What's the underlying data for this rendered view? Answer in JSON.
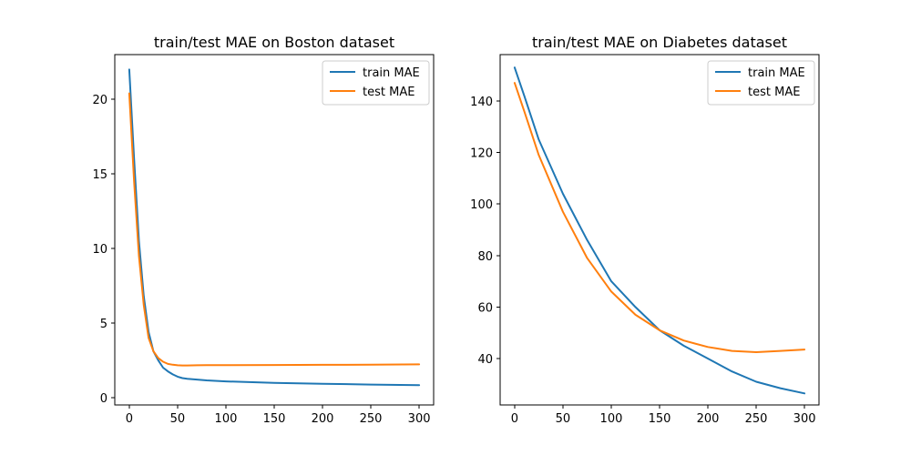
{
  "chart_data": [
    {
      "type": "line",
      "title": "train/test MAE on Boston dataset",
      "xlabel": "",
      "ylabel": "",
      "xlim": [
        -15,
        315
      ],
      "ylim": [
        -0.5,
        23.0
      ],
      "xticks": [
        0,
        50,
        100,
        150,
        200,
        250,
        300
      ],
      "yticks": [
        0,
        5,
        10,
        15,
        20
      ],
      "legend_position": "top-right",
      "grid": false,
      "series": [
        {
          "name": "train MAE",
          "color": "#1f77b4",
          "x": [
            0,
            5,
            10,
            15,
            20,
            25,
            30,
            35,
            40,
            45,
            50,
            55,
            60,
            70,
            80,
            100,
            150,
            200,
            250,
            300
          ],
          "y": [
            22.0,
            16.0,
            10.5,
            6.8,
            4.4,
            3.1,
            2.5,
            2.0,
            1.75,
            1.55,
            1.4,
            1.3,
            1.25,
            1.2,
            1.15,
            1.08,
            0.98,
            0.92,
            0.87,
            0.83
          ]
        },
        {
          "name": "test MAE",
          "color": "#ff7f0e",
          "x": [
            0,
            5,
            10,
            15,
            20,
            25,
            30,
            35,
            40,
            45,
            50,
            55,
            60,
            70,
            80,
            100,
            150,
            200,
            250,
            300
          ],
          "y": [
            20.4,
            14.5,
            9.5,
            6.2,
            4.0,
            3.1,
            2.65,
            2.4,
            2.25,
            2.2,
            2.16,
            2.15,
            2.15,
            2.16,
            2.17,
            2.17,
            2.18,
            2.19,
            2.2,
            2.22
          ]
        }
      ]
    },
    {
      "type": "line",
      "title": "train/test MAE on Diabetes dataset",
      "xlabel": "",
      "ylabel": "",
      "xlim": [
        -15,
        315
      ],
      "ylim": [
        22.0,
        158.0
      ],
      "xticks": [
        0,
        50,
        100,
        150,
        200,
        250,
        300
      ],
      "yticks": [
        40,
        60,
        80,
        100,
        120,
        140
      ],
      "legend_position": "top-right",
      "grid": false,
      "series": [
        {
          "name": "train MAE",
          "color": "#1f77b4",
          "x": [
            0,
            10,
            25,
            50,
            75,
            100,
            125,
            150,
            175,
            200,
            225,
            250,
            275,
            300
          ],
          "y": [
            153,
            142,
            125,
            104,
            86,
            70,
            60,
            51,
            45,
            40,
            35,
            31,
            28.5,
            26.5
          ]
        },
        {
          "name": "test MAE",
          "color": "#ff7f0e",
          "x": [
            0,
            10,
            25,
            50,
            75,
            100,
            125,
            150,
            175,
            200,
            225,
            250,
            275,
            300
          ],
          "y": [
            147,
            136,
            119,
            97,
            79,
            66,
            57,
            51,
            47,
            44.5,
            43,
            42.5,
            43,
            43.5
          ]
        }
      ]
    }
  ]
}
